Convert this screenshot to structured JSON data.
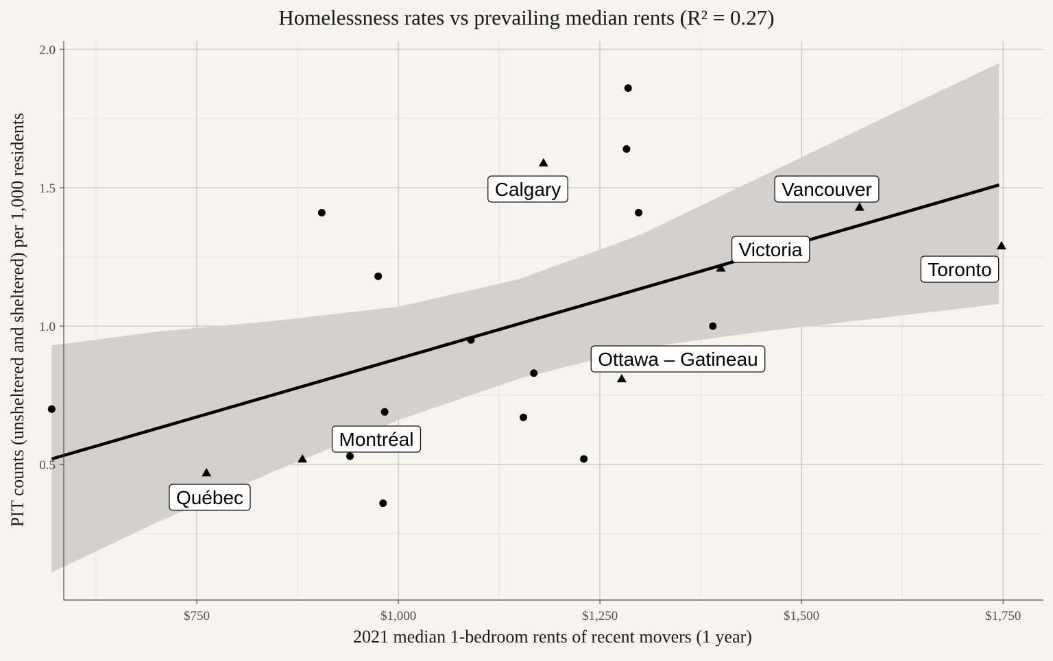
{
  "chart_data": {
    "type": "scatter",
    "title": "Homelessness rates vs prevailing median rents (R² = 0.27)",
    "xlabel": "2021 median 1-bedroom rents of recent movers (1 year)",
    "ylabel": "PIT counts (unsheltered and sheltered) per 1,000 residents",
    "xlim": [
      585,
      1800
    ],
    "ylim": [
      0.01,
      2.03
    ],
    "x_major_ticks": [
      750,
      1000,
      1250,
      1500,
      1750
    ],
    "x_tick_labels": [
      "$750",
      "$1,000",
      "$1,250",
      "$1,500",
      "$1,750"
    ],
    "x_minor_ticks": [
      625,
      875,
      1125,
      1375,
      1625
    ],
    "y_major_ticks": [
      0.5,
      1.0,
      1.5,
      2.0
    ],
    "y_tick_labels": [
      "0.5",
      "1.0",
      "1.5",
      "2.0"
    ],
    "y_minor_ticks": [
      0.25,
      0.75,
      1.25,
      1.75
    ],
    "grid": true,
    "legend": "none",
    "colors": {
      "background": "#f7f4ef",
      "confidence_band": "#d3d0cd",
      "fit_line": "#000000",
      "points": "#000000"
    },
    "trend_line": {
      "x": [
        570,
        1745
      ],
      "y": [
        0.52,
        1.51
      ]
    },
    "confidence_band": {
      "x": [
        570,
        700,
        850,
        1000,
        1150,
        1300,
        1450,
        1600,
        1745
      ],
      "lower": [
        0.11,
        0.29,
        0.48,
        0.66,
        0.81,
        0.92,
        0.98,
        1.03,
        1.08
      ],
      "upper": [
        0.93,
        0.98,
        1.02,
        1.07,
        1.17,
        1.33,
        1.54,
        1.75,
        1.95
      ]
    },
    "series": [
      {
        "marker": "circle",
        "points": [
          {
            "x": 570,
            "y": 0.7
          },
          {
            "x": 905,
            "y": 1.41
          },
          {
            "x": 975,
            "y": 1.18
          },
          {
            "x": 940,
            "y": 0.53
          },
          {
            "x": 983,
            "y": 0.69
          },
          {
            "x": 981,
            "y": 0.36
          },
          {
            "x": 1090,
            "y": 0.95
          },
          {
            "x": 1168,
            "y": 0.83
          },
          {
            "x": 1155,
            "y": 0.67
          },
          {
            "x": 1230,
            "y": 0.52
          },
          {
            "x": 1285,
            "y": 1.86
          },
          {
            "x": 1283,
            "y": 1.64
          },
          {
            "x": 1298,
            "y": 1.41
          },
          {
            "x": 1390,
            "y": 1.0
          }
        ]
      },
      {
        "marker": "triangle",
        "points": [
          {
            "x": 1180,
            "y": 1.59,
            "label": "Calgary"
          },
          {
            "x": 1572,
            "y": 1.43,
            "label": "Vancouver"
          },
          {
            "x": 1400,
            "y": 1.21,
            "label": "Victoria"
          },
          {
            "x": 1748,
            "y": 1.29,
            "label": "Toronto"
          },
          {
            "x": 1277,
            "y": 0.81,
            "label": "Ottawa – Gatineau"
          },
          {
            "x": 881,
            "y": 0.52,
            "label": "Montréal"
          },
          {
            "x": 762,
            "y": 0.47,
            "label": "Québec"
          }
        ]
      }
    ],
    "labels": [
      {
        "text": "Calgary",
        "x": 1000,
        "y": 1.5
      },
      {
        "text": "Vancouver",
        "x": 1000,
        "y": 1.5
      },
      {
        "text": "Victoria",
        "x": 1000,
        "y": 1.5
      },
      {
        "text": "Toronto",
        "x": 1000,
        "y": 1.5
      },
      {
        "text": "Ottawa – Gatineau",
        "x": 1000,
        "y": 1.5
      },
      {
        "text": "Montréal",
        "x": 1000,
        "y": 1.5
      },
      {
        "text": "Québec",
        "x": 1000,
        "y": 1.5
      }
    ]
  }
}
